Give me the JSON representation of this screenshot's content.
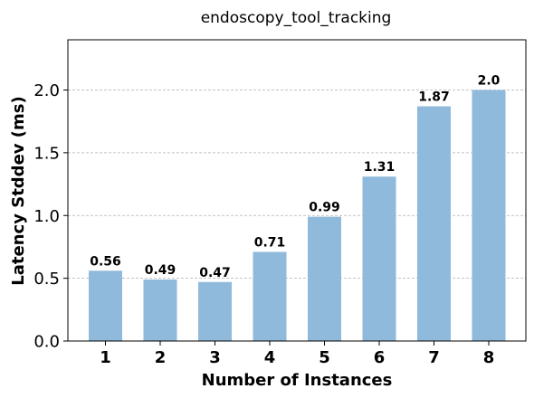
{
  "chart_data": {
    "type": "bar",
    "title": "endoscopy_tool_tracking",
    "xlabel": "Number of Instances",
    "ylabel": "Latency Stddev (ms)",
    "categories": [
      "1",
      "2",
      "3",
      "4",
      "5",
      "6",
      "7",
      "8"
    ],
    "values": [
      0.56,
      0.49,
      0.47,
      0.71,
      0.99,
      1.31,
      1.87,
      2.0
    ],
    "value_labels": [
      "0.56",
      "0.49",
      "0.47",
      "0.71",
      "0.99",
      "1.31",
      "1.87",
      "2.0"
    ],
    "yticks": [
      "0.0",
      "0.5",
      "1.0",
      "1.5",
      "2.0"
    ],
    "ylim": [
      0,
      2.4
    ],
    "grid": "y-dashed",
    "bar_color": "#8fbadb"
  }
}
